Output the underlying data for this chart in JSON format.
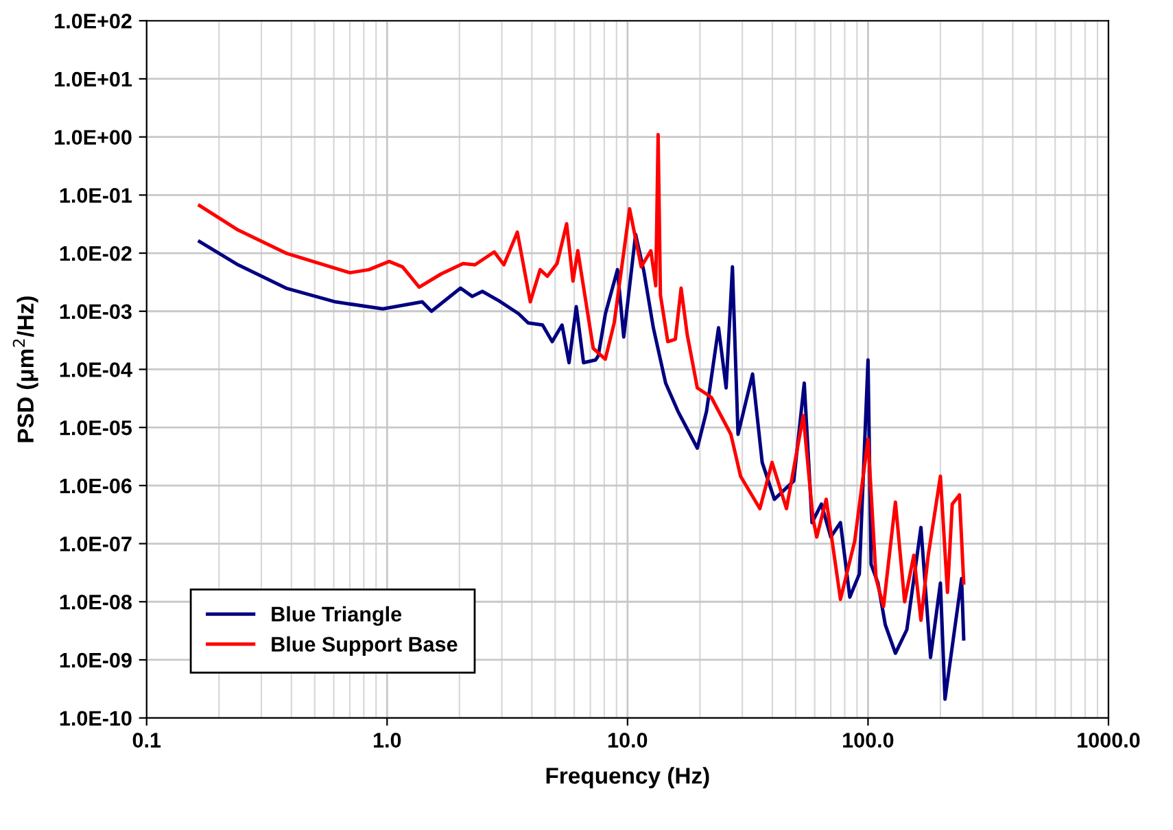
{
  "chart_data": {
    "type": "line",
    "xlabel": "Frequency (Hz)",
    "ylabel": "PSD (μm$^{2}$/Hz)",
    "log": "xy",
    "grid": true,
    "legend": "bottom left",
    "marker": "none",
    "line_style": "solid",
    "xlim": [
      0.1,
      1000
    ],
    "ylim": [
      1e-10,
      100
    ],
    "xticks": [
      {
        "value": 0.1,
        "label": "0.1"
      },
      {
        "value": 1,
        "label": "1.0"
      },
      {
        "value": 10,
        "label": "10.0"
      },
      {
        "value": 100,
        "label": "100.0"
      },
      {
        "value": 1000,
        "label": "1000.0"
      }
    ],
    "yticks": [
      {
        "value": 1e-10,
        "label": "1.0E-10"
      },
      {
        "value": 1e-09,
        "label": "1.0E-09"
      },
      {
        "value": 1e-08,
        "label": "1.0E-08"
      },
      {
        "value": 1e-07,
        "label": "1.0E-07"
      },
      {
        "value": 1e-06,
        "label": "1.0E-06"
      },
      {
        "value": 1e-05,
        "label": "1.0E-05"
      },
      {
        "value": 0.0001,
        "label": "1.0E-04"
      },
      {
        "value": 0.001,
        "label": "1.0E-03"
      },
      {
        "value": 0.01,
        "label": "1.0E-02"
      },
      {
        "value": 0.1,
        "label": "1.0E-01"
      },
      {
        "value": 1,
        "label": "1.0E+00"
      },
      {
        "value": 10,
        "label": "1.0E+01"
      },
      {
        "value": 100,
        "label": "1.0E+02"
      }
    ],
    "series": [
      {
        "name": "Blue Triangle",
        "color": "#000080",
        "x": [
          0.166,
          0.24,
          0.38,
          0.61,
          0.96,
          1.4,
          1.53,
          2.02,
          2.26,
          2.49,
          2.93,
          3.52,
          3.86,
          4.43,
          4.86,
          5.34,
          5.71,
          6.12,
          6.56,
          7.36,
          7.55,
          8.09,
          9.08,
          9.64,
          10.8,
          11.7,
          12.8,
          14.4,
          16.2,
          18.2,
          19.5,
          21.3,
          23.9,
          25.7,
          27.3,
          28.8,
          33.1,
          36.3,
          40.8,
          49.1,
          54.3,
          58.5,
          64,
          70,
          76.8,
          84,
          92,
          100,
          103,
          110,
          118,
          130,
          145,
          166,
          182,
          200,
          209,
          229,
          245,
          250
        ],
        "values": [
          0.0158,
          0.0063,
          0.0025,
          0.00145,
          0.0011,
          0.00145,
          0.001,
          0.0025,
          0.0018,
          0.0022,
          0.0015,
          0.00091,
          0.00063,
          0.00058,
          0.0003,
          0.00058,
          0.00013,
          0.0012,
          0.00013,
          0.000145,
          0.00017,
          0.00091,
          0.0052,
          0.00036,
          0.021,
          0.0048,
          0.00052,
          5.8e-05,
          1.9e-05,
          7.6e-06,
          4.4e-06,
          1.9e-05,
          0.00052,
          4.8e-05,
          0.0058,
          7.6e-06,
          8.3e-05,
          2.5e-06,
          5.8e-07,
          1.2e-06,
          5.8e-05,
          2.3e-07,
          4.8e-07,
          1.3e-07,
          2.3e-07,
          1.2e-08,
          3e-08,
          0.000145,
          4.4e-08,
          2.1e-08,
          4e-09,
          1.3e-09,
          3.3e-09,
          1.9e-07,
          1.1e-09,
          2.1e-08,
          2.1e-10,
          3.3e-09,
          2.5e-08,
          2.3e-09
        ]
      },
      {
        "name": "Blue Support Base",
        "color": "#ff0000",
        "x": [
          0.166,
          0.24,
          0.38,
          0.7,
          0.84,
          1.02,
          1.16,
          1.36,
          1.68,
          2.07,
          2.32,
          2.79,
          3.06,
          3.48,
          3.94,
          4.33,
          4.64,
          5.09,
          5.58,
          5.93,
          6.21,
          7.2,
          8.08,
          8.8,
          10.2,
          11.4,
          12.5,
          13.1,
          13.4,
          13.7,
          14.7,
          15.8,
          16.7,
          17.7,
          19.5,
          22.3,
          26.9,
          29.5,
          35.5,
          39.9,
          45.8,
          53.8,
          59,
          61.2,
          67,
          76.8,
          88,
          100,
          108,
          116,
          130,
          142,
          155,
          166,
          178,
          200,
          214,
          224,
          240,
          250
        ],
        "values": [
          0.066,
          0.025,
          0.01,
          0.0046,
          0.0052,
          0.0072,
          0.0058,
          0.0026,
          0.0044,
          0.0066,
          0.0063,
          0.0105,
          0.0063,
          0.023,
          0.00145,
          0.0052,
          0.004,
          0.0066,
          0.032,
          0.0033,
          0.011,
          0.00023,
          0.00015,
          0.00063,
          0.058,
          0.0058,
          0.011,
          0.00275,
          1.1,
          0.0019,
          0.0003,
          0.00033,
          0.0025,
          0.0004,
          4.8e-05,
          3.3e-05,
          7.6e-06,
          1.45e-06,
          4e-07,
          2.5e-06,
          4e-07,
          1.6e-05,
          2.75e-07,
          1.3e-07,
          5.8e-07,
          1.1e-08,
          1.1e-07,
          6.3e-06,
          2.5e-08,
          8.3e-09,
          5.2e-07,
          1e-08,
          6.3e-08,
          4.8e-09,
          6.3e-08,
          1.45e-06,
          1.45e-08,
          4.8e-07,
          6.9e-07,
          2.1e-08
        ]
      }
    ]
  }
}
